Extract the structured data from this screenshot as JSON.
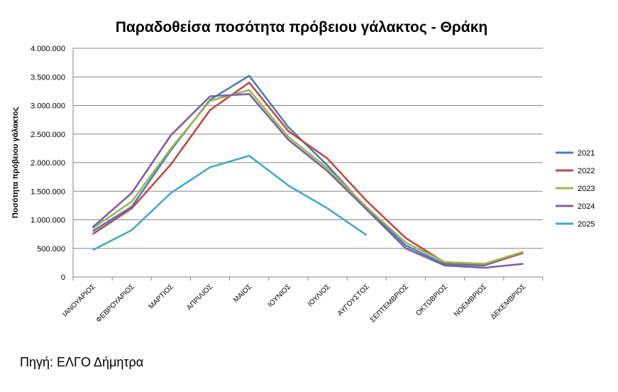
{
  "chart_data": {
    "type": "line",
    "title": "Παραδοθείσα ποσότητα πρόβειου γάλακτος - Θράκη",
    "xlabel": "",
    "ylabel": "Ποσότητα πρόβειου γάλακτος",
    "ylim": [
      0,
      4000000
    ],
    "yticks": [
      0,
      500000,
      1000000,
      1500000,
      2000000,
      2500000,
      3000000,
      3500000,
      4000000
    ],
    "ytick_labels": [
      "0",
      "500.000",
      "1.000.000",
      "1.500.000",
      "2.000.000",
      "2.500.000",
      "3.000.000",
      "3.500.000",
      "4.000.000"
    ],
    "grid": true,
    "legend": "right",
    "categories": [
      "ΙΑΝΟΥΑΡΙΟΣ",
      "ΦΕΒΡΟΥΑΡΙΟΣ",
      "ΜΑΡΤΙΟΣ",
      "ΑΠΡΙΛΙΟΣ",
      "ΜΑΙΟΣ",
      "ΙΟΥΝΙΟΣ",
      "ΙΟΥΛΙΟΣ",
      "ΑΥΓΟΥΣΤΟΣ",
      "ΣΕΠΤΕΜΒΡΙΟΣ",
      "ΟΚΤΩΒΡΙΟΣ",
      "ΝΟΕΜΒΡΙΟΣ",
      "ΔΕΚΕΜΒΡΙΟΣ"
    ],
    "series": [
      {
        "name": "2021",
        "color": "#4a7ebb",
        "values": [
          800000,
          1230000,
          2220000,
          3100000,
          3520000,
          2620000,
          1950000,
          1200000,
          550000,
          220000,
          200000,
          420000
        ]
      },
      {
        "name": "2022",
        "color": "#be4b48",
        "values": [
          750000,
          1200000,
          1970000,
          2920000,
          3400000,
          2550000,
          2070000,
          1330000,
          680000,
          250000,
          220000,
          420000
        ]
      },
      {
        "name": "2023",
        "color": "#98b954",
        "values": [
          850000,
          1320000,
          2250000,
          3080000,
          3270000,
          2450000,
          1900000,
          1220000,
          600000,
          260000,
          230000,
          440000
        ]
      },
      {
        "name": "2024",
        "color": "#7d60a0",
        "values": [
          870000,
          1470000,
          2480000,
          3160000,
          3200000,
          2400000,
          1850000,
          1180000,
          500000,
          200000,
          160000,
          230000
        ]
      },
      {
        "name": "2025",
        "color": "#46aac5",
        "values": [
          470000,
          820000,
          1470000,
          1920000,
          2120000,
          1600000,
          1200000,
          730000,
          null,
          null,
          null,
          null
        ]
      }
    ]
  },
  "source": "Πηγή: ΕΛΓΟ Δήμητρα"
}
